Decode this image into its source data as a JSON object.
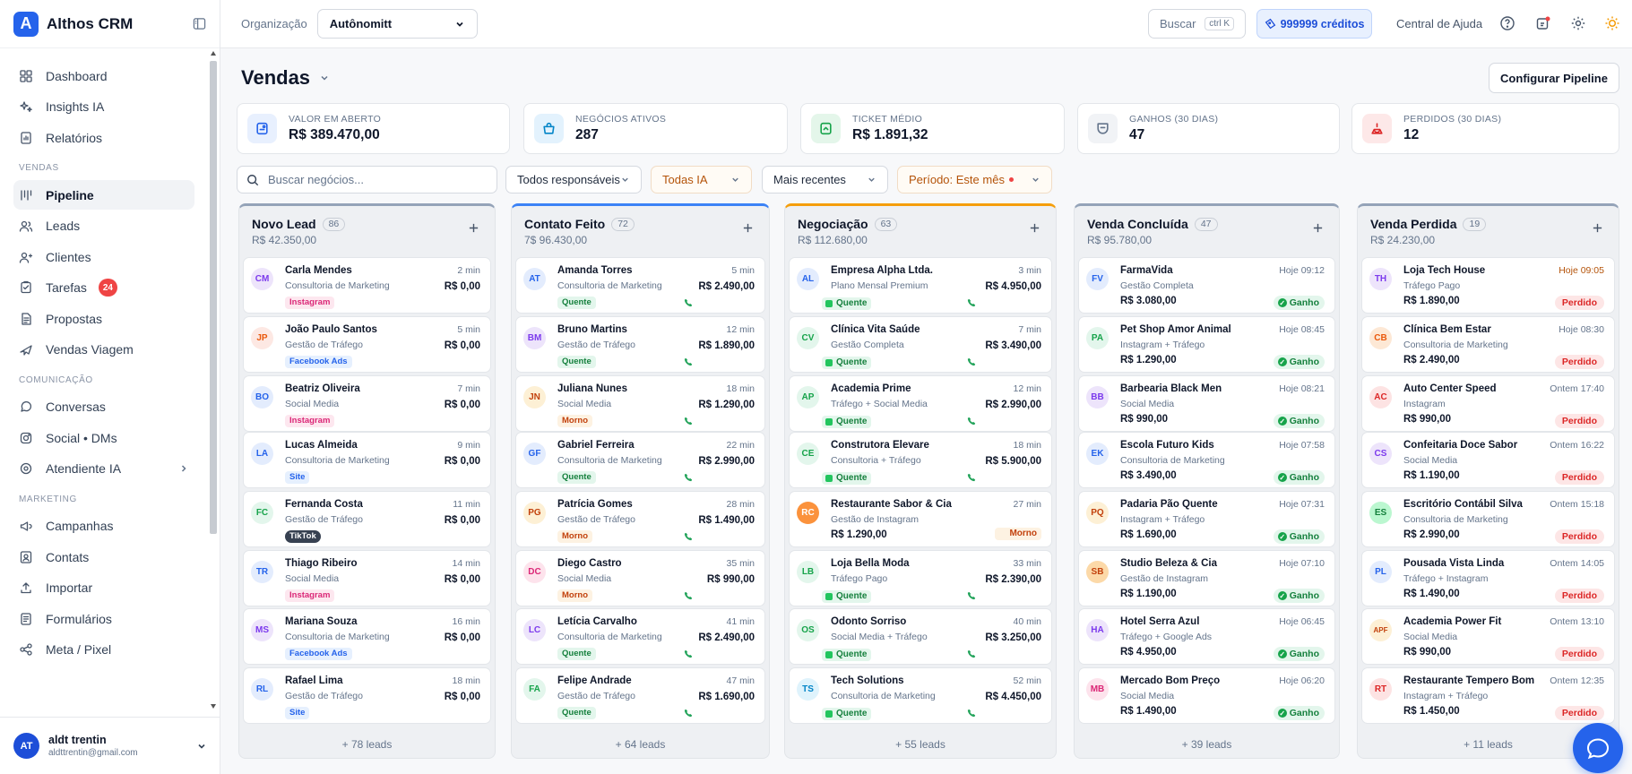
{
  "brand": {
    "logo_letter": "A",
    "name": "Althos CRM"
  },
  "nav": {
    "top": [
      {
        "label": "Dashboard",
        "icon": "grid-icon"
      },
      {
        "label": "Insights IA",
        "icon": "sparkles-icon"
      },
      {
        "label": "Relatórios",
        "icon": "report-icon"
      }
    ],
    "sections": [
      {
        "title": "VENDAS",
        "items": [
          {
            "label": "Pipeline",
            "icon": "pipeline-icon",
            "active": true
          },
          {
            "label": "Leads",
            "icon": "users-icon"
          },
          {
            "label": "Clientes",
            "icon": "user-icon"
          },
          {
            "label": "Tarefas",
            "icon": "tasks-icon",
            "badge": "24"
          },
          {
            "label": "Propostas",
            "icon": "document-icon"
          },
          {
            "label": "Vendas Viagem",
            "icon": "plane-icon"
          }
        ]
      },
      {
        "title": "COMUNICAÇÃO",
        "items": [
          {
            "label": "Conversas",
            "icon": "chat-icon"
          },
          {
            "label": "Social • DMs",
            "icon": "instagram-icon"
          },
          {
            "label": "Atendiente IA",
            "icon": "bot-icon",
            "chevron": true
          }
        ]
      },
      {
        "title": "MARKETING",
        "items": [
          {
            "label": "Campanhas",
            "icon": "megaphone-icon"
          },
          {
            "label": "Contats",
            "icon": "contacts-icon"
          },
          {
            "label": "Importar",
            "icon": "upload-icon"
          },
          {
            "label": "Formulários",
            "icon": "form-icon"
          },
          {
            "label": "Meta / Pixel",
            "icon": "share-icon"
          }
        ]
      }
    ]
  },
  "user": {
    "initials": "AT",
    "name": "aldt trentin",
    "email": "aldttrentin@gmail.com"
  },
  "header": {
    "org_label": "Organização",
    "org_value": "Autônomitt",
    "search_label": "Buscar",
    "search_kbd": "ctrl K",
    "credits": "999999 créditos",
    "help": "Central de Ajuda"
  },
  "page": {
    "title": "Vendas",
    "config_button": "Configurar Pipeline"
  },
  "stats": [
    {
      "label": "VALOR EM ABERTO",
      "value": "R$ 389.470,00",
      "color": "#2563eb",
      "bg": "#e8f0fe"
    },
    {
      "label": "NEGÓCIOS ATIVOS",
      "value": "287",
      "color": "#0284c7",
      "bg": "#e3f2fd"
    },
    {
      "label": "TICKET MÉDIO",
      "value": "R$ 1.891,32",
      "color": "#16a34a",
      "bg": "#e4f6ea"
    },
    {
      "label": "GANHOS (30 DIAS)",
      "value": "47",
      "color": "#64748b",
      "bg": "#f1f3f6"
    },
    {
      "label": "PERDIDOS (30 DIAS)",
      "value": "12",
      "color": "#dc2626",
      "bg": "#fde8e8"
    }
  ],
  "filters": {
    "search_placeholder": "Buscar negócios...",
    "responsible": "Todos responsáveis",
    "ia": "Todas IA",
    "sort": "Mais recentes",
    "period": "Período: Este mês"
  },
  "columns": [
    {
      "title": "Novo Lead",
      "count": "86",
      "total": "R$ 42.350,00",
      "color": "#94a3b8",
      "more": "+ 78 leads",
      "cards": [
        {
          "initials": "CM",
          "name": "Carla Mendes",
          "sub": "Consultoria de Marketing",
          "time": "2 min",
          "value": "R$ 0,00",
          "tag": "Instagram",
          "tag_type": "ig",
          "av_bg": "#ede4fb",
          "av_fg": "#7c3aed"
        },
        {
          "initials": "JP",
          "name": "João Paulo Santos",
          "sub": "Gestão de Tráfego",
          "time": "5 min",
          "value": "R$ 0,00",
          "tag": "Facebook Ads",
          "tag_type": "fb",
          "av_bg": "#fde8e3",
          "av_fg": "#ea580c"
        },
        {
          "initials": "BO",
          "name": "Beatriz Oliveira",
          "sub": "Social Media",
          "time": "7 min",
          "value": "R$ 0,00",
          "tag": "Instagram",
          "tag_type": "ig",
          "av_bg": "#e3ecfd",
          "av_fg": "#2563eb"
        },
        {
          "initials": "LA",
          "name": "Lucas Almeida",
          "sub": "Consultoria de Marketing",
          "time": "9 min",
          "value": "R$ 0,00",
          "tag": "Site",
          "tag_type": "site",
          "av_bg": "#e3ecfd",
          "av_fg": "#2563eb"
        },
        {
          "initials": "FC",
          "name": "Fernanda Costa",
          "sub": "Gestão de Tráfego",
          "time": "11 min",
          "value": "R$ 0,00",
          "tag": "TikTok",
          "tag_type": "tt",
          "av_bg": "#e3f6ec",
          "av_fg": "#16a34a"
        },
        {
          "initials": "TR",
          "name": "Thiago Ribeiro",
          "sub": "Social Media",
          "time": "14 min",
          "value": "R$ 0,00",
          "tag": "Instagram",
          "tag_type": "ig",
          "av_bg": "#e3ecfd",
          "av_fg": "#2563eb"
        },
        {
          "initials": "MS",
          "name": "Mariana Souza",
          "sub": "Consultoria de Marketing",
          "time": "16 min",
          "value": "R$ 0,00",
          "tag": "Facebook Ads",
          "tag_type": "fb",
          "av_bg": "#ede4fb",
          "av_fg": "#7c3aed"
        },
        {
          "initials": "RL",
          "name": "Rafael Lima",
          "sub": "Gestão de Tráfego",
          "time": "18 min",
          "value": "R$ 0,00",
          "tag": "Site",
          "tag_type": "site",
          "av_bg": "#e3ecfd",
          "av_fg": "#2563eb"
        }
      ]
    },
    {
      "title": "Contato Feito",
      "count": "72",
      "total": "7$ 96.430,00",
      "color": "#3b82f6",
      "more": "+ 64 leads",
      "cards": [
        {
          "initials": "AT",
          "name": "Amanda Torres",
          "sub": "Consultoria de Marketing",
          "time": "5 min",
          "value": "R$ 2.490,00",
          "tag": "Quente",
          "tag_type": "hot",
          "av_bg": "#e3ecfd",
          "av_fg": "#2563eb"
        },
        {
          "initials": "BM",
          "name": "Bruno Martins",
          "sub": "Gestão de Tráfego",
          "time": "12 min",
          "value": "R$ 1.890,00",
          "tag": "Quente",
          "tag_type": "hot",
          "av_bg": "#ede4fb",
          "av_fg": "#7c3aed"
        },
        {
          "initials": "JN",
          "name": "Juliana Nunes",
          "sub": "Social Media",
          "time": "18 min",
          "value": "R$ 1.290,00",
          "tag": "Morno",
          "tag_type": "warm",
          "av_bg": "#fdf0d5",
          "av_fg": "#c2410c"
        },
        {
          "initials": "GF",
          "name": "Gabriel Ferreira",
          "sub": "Consultoria de Marketing",
          "time": "22 min",
          "value": "R$ 2.990,00",
          "tag": "Quente",
          "tag_type": "hot",
          "av_bg": "#e3ecfd",
          "av_fg": "#2563eb"
        },
        {
          "initials": "PG",
          "name": "Patrícia Gomes",
          "sub": "Gestão de Tráfego",
          "time": "28 min",
          "value": "R$ 1.490,00",
          "tag": "Morno",
          "tag_type": "warm",
          "av_bg": "#fdf0d5",
          "av_fg": "#c2410c"
        },
        {
          "initials": "DC",
          "name": "Diego Castro",
          "sub": "Social Media",
          "time": "35 min",
          "value": "R$ 990,00",
          "tag": "Morno",
          "tag_type": "warm",
          "av_bg": "#fde3ec",
          "av_fg": "#db2777"
        },
        {
          "initials": "LC",
          "name": "Letícia Carvalho",
          "sub": "Consultoria de Marketing",
          "time": "41 min",
          "value": "R$ 2.490,00",
          "tag": "Quente",
          "tag_type": "hot",
          "av_bg": "#ede4fb",
          "av_fg": "#7c3aed"
        },
        {
          "initials": "FA",
          "name": "Felipe Andrade",
          "sub": "Gestão de Tráfego",
          "time": "47 min",
          "value": "R$ 1.690,00",
          "tag": "Quente",
          "tag_type": "hot",
          "av_bg": "#e3f6ec",
          "av_fg": "#16a34a"
        }
      ]
    },
    {
      "title": "Negociação",
      "count": "63",
      "total": "R$ 112.680,00",
      "color": "#f59e0b",
      "more": "+ 55 leads",
      "cards": [
        {
          "initials": "AL",
          "name": "Empresa Alpha Ltda.",
          "sub": "Plano Mensal Premium",
          "time": "3 min",
          "value": "R$ 4.950,00",
          "tag": "Quente",
          "tag_type": "hot",
          "av_bg": "#e3ecfd",
          "av_fg": "#2563eb"
        },
        {
          "initials": "CV",
          "name": "Clínica Vita Saúde",
          "sub": "Gestão Completa",
          "time": "7 min",
          "value": "R$ 3.490,00",
          "tag": "Quente",
          "tag_type": "hot",
          "av_bg": "#e3f6ec",
          "av_fg": "#16a34a"
        },
        {
          "initials": "AP",
          "name": "Academia Prime",
          "sub": "Tráfego + Social Media",
          "time": "12 min",
          "value": "R$ 2.990,00",
          "tag": "Quente",
          "tag_type": "hot",
          "av_bg": "#e3f6ec",
          "av_fg": "#16a34a"
        },
        {
          "initials": "CE",
          "name": "Construtora Elevare",
          "sub": "Consultoria + Tráfego",
          "time": "18 min",
          "value": "R$ 5.900,00",
          "tag": "Quente",
          "tag_type": "hot",
          "av_bg": "#e3f6ec",
          "av_fg": "#16a34a"
        },
        {
          "initials": "RC",
          "name": "Restaurante Sabor & Cia",
          "sub": "Gestão de Instagram",
          "time": "27 min",
          "value": "R$ 1.290,00",
          "tag": "Morno",
          "tag_type": "warm",
          "av_bg": "#fb923c",
          "av_fg": "#ffffff",
          "left_value": true
        },
        {
          "initials": "LB",
          "name": "Loja Bella Moda",
          "sub": "Tráfego Pago",
          "time": "33 min",
          "value": "R$ 2.390,00",
          "tag": "Quente",
          "tag_type": "hot",
          "av_bg": "#e3f6ec",
          "av_fg": "#16a34a"
        },
        {
          "initials": "OS",
          "name": "Odonto Sorriso",
          "sub": "Social Media + Tráfego",
          "time": "40 min",
          "value": "R$ 3.250,00",
          "tag": "Quente",
          "tag_type": "hot",
          "av_bg": "#e3f6ec",
          "av_fg": "#16a34a"
        },
        {
          "initials": "TS",
          "name": "Tech Solutions",
          "sub": "Consultoria de Marketing",
          "time": "52 min",
          "value": "R$ 4.450,00",
          "tag": "Quente",
          "tag_type": "hot",
          "av_bg": "#dff3fc",
          "av_fg": "#0284c7"
        }
      ]
    },
    {
      "title": "Venda Concluída",
      "count": "47",
      "total": "R$ 95.780,00",
      "color": "#94a3b8",
      "more": "+ 39 leads",
      "cards": [
        {
          "initials": "FV",
          "name": "FarmaVida",
          "sub": "Gestão Completa",
          "time": "Hoje 09:12",
          "value": "R$ 3.080,00",
          "status": "Ganho",
          "av_bg": "#e3ecfd",
          "av_fg": "#2563eb"
        },
        {
          "initials": "PA",
          "name": "Pet Shop Amor Animal",
          "sub": "Instagram + Tráfego",
          "time": "Hoje 08:45",
          "value": "R$ 1.290,00",
          "status": "Ganho",
          "av_bg": "#e3f6ec",
          "av_fg": "#16a34a"
        },
        {
          "initials": "BB",
          "name": "Barbearia Black Men",
          "sub": "Social Media",
          "time": "Hoje 08:21",
          "value": "R$ 990,00",
          "status": "Ganho",
          "av_bg": "#ede4fb",
          "av_fg": "#7c3aed"
        },
        {
          "initials": "EK",
          "name": "Escola Futuro Kids",
          "sub": "Consultoria de Marketing",
          "time": "Hoje 07:58",
          "value": "R$ 3.490,00",
          "status": "Ganho",
          "av_bg": "#e3ecfd",
          "av_fg": "#2563eb"
        },
        {
          "initials": "PQ",
          "name": "Padaria Pão Quente",
          "sub": "Instagram + Tráfego",
          "time": "Hoje 07:31",
          "value": "R$ 1.690,00",
          "status": "Ganho",
          "av_bg": "#fdf0d5",
          "av_fg": "#c2410c"
        },
        {
          "initials": "SB",
          "name": "Studio Beleza & Cia",
          "sub": "Gestão de Instagram",
          "time": "Hoje 07:10",
          "value": "R$ 1.190,00",
          "status": "Ganho",
          "av_bg": "#fcd9a8",
          "av_fg": "#c2410c"
        },
        {
          "initials": "HA",
          "name": "Hotel Serra Azul",
          "sub": "Tráfego + Google Ads",
          "time": "Hoje 06:45",
          "value": "R$ 4.950,00",
          "status": "Ganho",
          "av_bg": "#ede4fb",
          "av_fg": "#7c3aed"
        },
        {
          "initials": "MB",
          "name": "Mercado Bom Preço",
          "sub": "Social Media",
          "time": "Hoje 06:20",
          "value": "R$ 1.490,00",
          "status": "Ganho",
          "av_bg": "#fde3ec",
          "av_fg": "#db2777"
        }
      ]
    },
    {
      "title": "Venda Perdida",
      "count": "19",
      "total": "R$ 24.230,00",
      "color": "#94a3b8",
      "more": "+ 11 leads",
      "cards": [
        {
          "initials": "TH",
          "name": "Loja Tech House",
          "sub": "Tráfego Pago",
          "time": "Hoje 09:05",
          "value": "R$ 1.890,00",
          "status": "Perdido",
          "av_bg": "#ede4fb",
          "av_fg": "#7c3aed",
          "time_red": true
        },
        {
          "initials": "CB",
          "name": "Clínica Bem Estar",
          "sub": "Consultoria de Marketing",
          "time": "Hoje 08:30",
          "value": "R$ 2.490,00",
          "status": "Perdido",
          "av_bg": "#fde8d5",
          "av_fg": "#ea580c"
        },
        {
          "initials": "AC",
          "name": "Auto Center Speed",
          "sub": "Instagram",
          "time": "Ontem 17:40",
          "value": "R$ 990,00",
          "status": "Perdido",
          "av_bg": "#fde3e3",
          "av_fg": "#dc2626"
        },
        {
          "initials": "CS",
          "name": "Confeitaria Doce Sabor",
          "sub": "Social Media",
          "time": "Ontem 16:22",
          "value": "R$ 1.190,00",
          "status": "Perdido",
          "av_bg": "#ede4fb",
          "av_fg": "#7c3aed"
        },
        {
          "initials": "ES",
          "name": "Escritório Contábil Silva",
          "sub": "Consultoria de Marketing",
          "time": "Ontem 15:18",
          "value": "R$ 2.990,00",
          "status": "Perdido",
          "av_bg": "#bbf7d0",
          "av_fg": "#15803d"
        },
        {
          "initials": "PL",
          "name": "Pousada Vista Linda",
          "sub": "Tráfego + Instagram",
          "time": "Ontem 14:05",
          "value": "R$ 1.490,00",
          "status": "Perdido",
          "av_bg": "#e3ecfd",
          "av_fg": "#2563eb"
        },
        {
          "initials": "APF",
          "name": "Academia Power Fit",
          "sub": "Social Media",
          "time": "Ontem 13:10",
          "value": "R$ 990,00",
          "status": "Perdido",
          "av_bg": "#fdf0d5",
          "av_fg": "#c2410c"
        },
        {
          "initials": "RT",
          "name": "Restaurante Tempero Bom",
          "sub": "Instagram + Tráfego",
          "time": "Ontem 12:35",
          "value": "R$ 1.450,00",
          "status": "Perdido",
          "av_bg": "#fde3e3",
          "av_fg": "#dc2626"
        }
      ]
    }
  ]
}
